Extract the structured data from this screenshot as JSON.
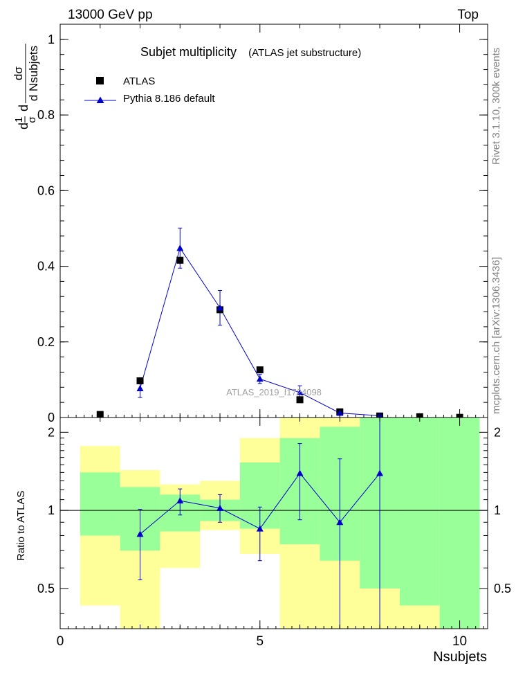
{
  "header": {
    "left": "13000 GeV pp",
    "right": "Top"
  },
  "side_labels": {
    "rivet": "Rivet 3.1.10,  300k events",
    "mcplots": "mcplots.cern.ch [arXiv:1306.3436]"
  },
  "chart_data": [
    {
      "panel": "main",
      "type": "scatter",
      "title": "Subjet multiplicity",
      "subtitle": "(ATLAS jet substructure)",
      "watermark": "ATLAS_2019_I1724098",
      "ylabel": {
        "numerator": "dσ",
        "prefix": "d",
        "frac_num": "1",
        "frac_den": "σ",
        "denominator": "d Nsubjets"
      },
      "xlim": [
        0,
        10.7
      ],
      "ylim": [
        0,
        1.04
      ],
      "yticks": [
        0,
        0.2,
        0.4,
        0.6,
        0.8,
        1
      ],
      "ytick_labels": [
        "0",
        "0.2",
        "0.4",
        "0.6",
        "0.8",
        "1"
      ],
      "legend": [
        {
          "name": "ATLAS",
          "marker": "square",
          "color": "#000000"
        },
        {
          "name": "Pythia 8.186 default",
          "marker": "triangle",
          "color": "#0000cc"
        }
      ],
      "data": {
        "x": [
          1,
          2,
          3,
          4,
          5,
          6,
          7,
          8,
          9,
          10
        ],
        "y": [
          0.008,
          0.097,
          0.416,
          0.285,
          0.126,
          0.047,
          0.015,
          0.004,
          0.002,
          0.0005
        ]
      },
      "mc": {
        "x": [
          2,
          3,
          4,
          5,
          6,
          7,
          8
        ],
        "y": [
          0.077,
          0.448,
          0.29,
          0.102,
          0.066,
          0.012,
          0.0045
        ],
        "err": [
          0.024,
          0.053,
          0.046,
          0.012,
          0.018,
          0.006,
          0.0035
        ]
      }
    },
    {
      "panel": "ratio",
      "type": "line",
      "ylabel": "Ratio to ATLAS",
      "xlabel": "Nsubjets",
      "xlim": [
        0,
        10.7
      ],
      "ylim": [
        0.35,
        2.28
      ],
      "xticks": [
        0,
        5,
        10
      ],
      "xtick_labels": [
        "0",
        "5",
        "10"
      ],
      "yticks": [
        0.5,
        1,
        2
      ],
      "ytick_labels": [
        "0.5",
        "1",
        "2"
      ],
      "bands": {
        "edges": [
          [
            0.5,
            1.5
          ],
          [
            1.5,
            2.5
          ],
          [
            2.5,
            3.5
          ],
          [
            3.5,
            4.5
          ],
          [
            4.5,
            5.5
          ],
          [
            5.5,
            6.5
          ],
          [
            6.5,
            7.5
          ],
          [
            7.5,
            8.5
          ],
          [
            8.5,
            9.5
          ],
          [
            9.5,
            10.5
          ]
        ],
        "green_lo": [
          0.8,
          0.7,
          0.83,
          0.91,
          0.85,
          0.74,
          0.64,
          0.5,
          0.43,
          0.35
        ],
        "green_hi": [
          1.4,
          1.23,
          1.15,
          1.1,
          1.53,
          1.9,
          2.1,
          2.28,
          2.28,
          2.28
        ],
        "yellow_lo": [
          0.43,
          0.35,
          0.6,
          0.84,
          0.68,
          0.35,
          0.35,
          0.35,
          0.35,
          0.35
        ],
        "yellow_hi": [
          1.77,
          1.43,
          1.26,
          1.3,
          1.9,
          2.28,
          2.28,
          2.28,
          2.28,
          2.28
        ]
      },
      "series": [
        {
          "name": "Pythia 8.186 default",
          "x": [
            2,
            3,
            4,
            5,
            6,
            7,
            8
          ],
          "y": [
            0.81,
            1.09,
            1.02,
            0.85,
            1.39,
            0.9,
            1.39
          ],
          "err_lo": [
            0.27,
            0.13,
            0.12,
            0.21,
            0.47,
            0.55,
            1.04
          ],
          "err_hi": [
            0.2,
            0.12,
            0.13,
            0.18,
            0.42,
            0.68,
            0.89
          ]
        }
      ]
    }
  ]
}
